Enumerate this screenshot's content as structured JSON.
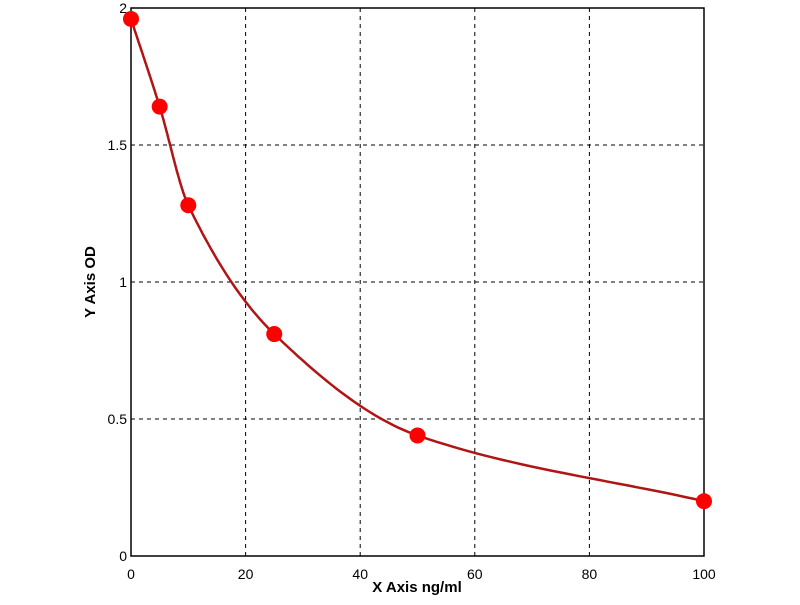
{
  "chart_data": {
    "type": "line",
    "title": "",
    "xlabel": "X Axis ng/ml",
    "ylabel": "Y Axis OD",
    "xlim": [
      0,
      100
    ],
    "ylim": [
      0,
      2
    ],
    "x_ticks": [
      "0",
      "20",
      "40",
      "60",
      "80",
      "100"
    ],
    "y_ticks": [
      "0",
      "0.5",
      "1",
      "1.5",
      "2"
    ],
    "grid": true,
    "grid_style": "dashed",
    "series": [
      {
        "x": [
          0,
          5,
          10,
          25,
          50,
          100
        ],
        "y": [
          1.96,
          1.64,
          1.28,
          0.81,
          0.44,
          0.2
        ],
        "marker_color": "#ff0000",
        "line_color": "#b01515"
      }
    ]
  }
}
